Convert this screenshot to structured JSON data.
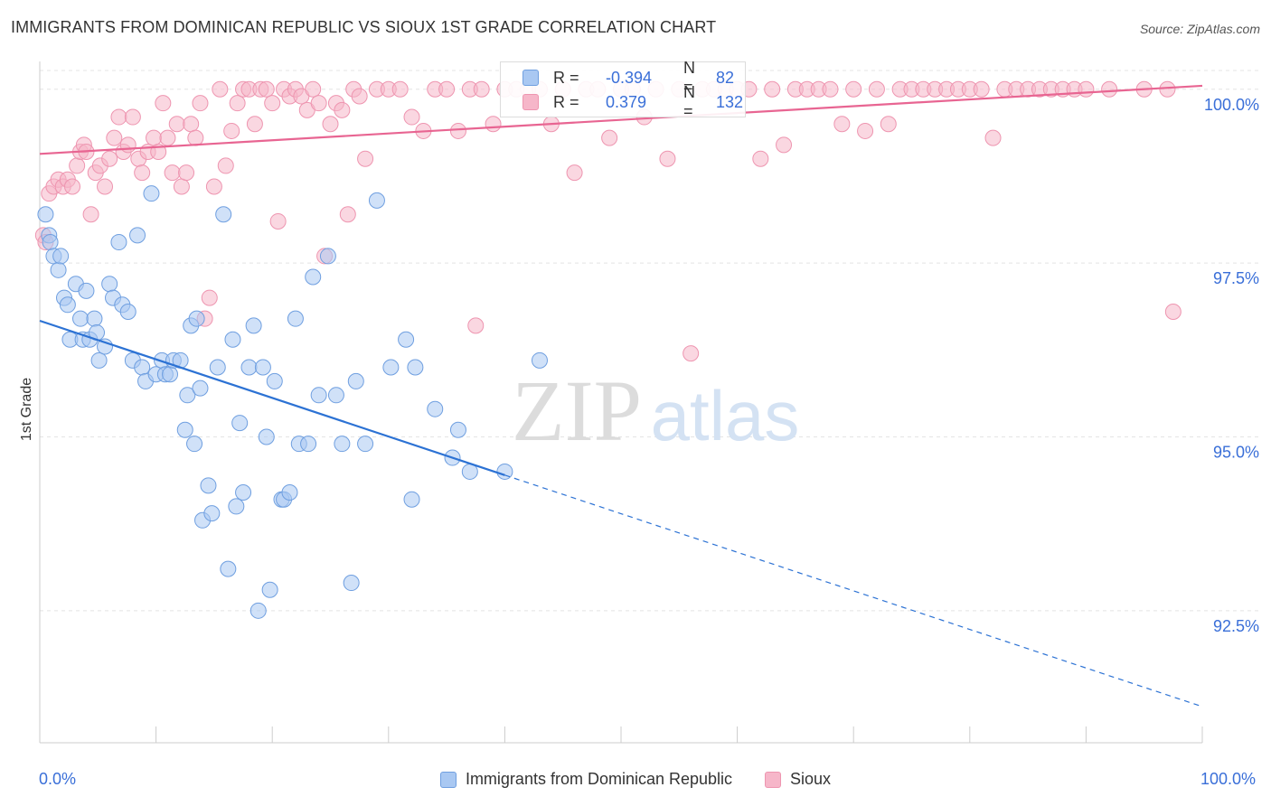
{
  "header": {
    "title": "IMMIGRANTS FROM DOMINICAN REPUBLIC VS SIOUX 1ST GRADE CORRELATION CHART",
    "source": "Source: ZipAtlas.com"
  },
  "watermark": {
    "zip": "ZIP",
    "atlas": "atlas"
  },
  "colors": {
    "blue_fill": "#a9c8f2",
    "blue_stroke": "#6f9fe0",
    "blue_line": "#2c72d4",
    "pink_fill": "#f6b6c9",
    "pink_stroke": "#ee95b0",
    "pink_line": "#e86592",
    "axis_value": "#3a6fd8",
    "grid": "#e4e4e4"
  },
  "stats": [
    {
      "r_label": "R =",
      "r_value": "-0.394",
      "n_label": "N =",
      "n_value": "82",
      "color": "blue"
    },
    {
      "r_label": "R =",
      "r_value": "0.379",
      "n_label": "N =",
      "n_value": "132",
      "color": "pink"
    }
  ],
  "chart_data": {
    "type": "scatter",
    "title": "IMMIGRANTS FROM DOMINICAN REPUBLIC VS SIOUX 1ST GRADE CORRELATION CHART",
    "xlabel": "",
    "ylabel": "1st Grade",
    "xlim": [
      0,
      100
    ],
    "ylim": [
      90.6,
      100.4
    ],
    "x_tick_labels": [
      "0.0%",
      "100.0%"
    ],
    "y_ticks": [
      92.5,
      95.0,
      97.5,
      100.0
    ],
    "y_tick_labels": [
      "92.5%",
      "95.0%",
      "97.5%",
      "100.0%"
    ],
    "grid": true,
    "legend_position": "bottom-center",
    "series": [
      {
        "name": "Immigrants from Dominican Republic",
        "color": "blue",
        "R": -0.394,
        "N": 82,
        "trend": {
          "x0": 0,
          "y0": 96.67,
          "x_solid_end": 40,
          "x1": 100,
          "y1": 91.12
        },
        "points": [
          [
            0.5,
            98.2
          ],
          [
            0.8,
            97.9
          ],
          [
            0.9,
            97.8
          ],
          [
            1.2,
            97.6
          ],
          [
            1.6,
            97.4
          ],
          [
            1.8,
            97.6
          ],
          [
            2.1,
            97.0
          ],
          [
            2.4,
            96.9
          ],
          [
            2.6,
            96.4
          ],
          [
            3.1,
            97.2
          ],
          [
            3.5,
            96.7
          ],
          [
            3.7,
            96.4
          ],
          [
            4.0,
            97.1
          ],
          [
            4.3,
            96.4
          ],
          [
            4.7,
            96.7
          ],
          [
            4.9,
            96.5
          ],
          [
            5.1,
            96.1
          ],
          [
            5.6,
            96.3
          ],
          [
            6.0,
            97.2
          ],
          [
            6.3,
            97.0
          ],
          [
            6.8,
            97.8
          ],
          [
            7.1,
            96.9
          ],
          [
            7.6,
            96.8
          ],
          [
            8.0,
            96.1
          ],
          [
            8.4,
            97.9
          ],
          [
            8.8,
            96.0
          ],
          [
            9.1,
            95.8
          ],
          [
            9.6,
            98.5
          ],
          [
            10.0,
            95.9
          ],
          [
            10.5,
            96.1
          ],
          [
            10.8,
            95.9
          ],
          [
            11.2,
            95.9
          ],
          [
            11.5,
            96.1
          ],
          [
            12.1,
            96.1
          ],
          [
            12.5,
            95.1
          ],
          [
            12.7,
            95.6
          ],
          [
            13.0,
            96.6
          ],
          [
            13.3,
            94.9
          ],
          [
            13.5,
            96.7
          ],
          [
            13.8,
            95.7
          ],
          [
            14.0,
            93.8
          ],
          [
            14.5,
            94.3
          ],
          [
            14.8,
            93.9
          ],
          [
            15.3,
            96.0
          ],
          [
            15.8,
            98.2
          ],
          [
            16.2,
            93.1
          ],
          [
            16.6,
            96.4
          ],
          [
            16.9,
            94.0
          ],
          [
            17.2,
            95.2
          ],
          [
            17.5,
            94.2
          ],
          [
            18.0,
            96.0
          ],
          [
            18.4,
            96.6
          ],
          [
            18.8,
            92.5
          ],
          [
            19.2,
            96.0
          ],
          [
            19.5,
            95.0
          ],
          [
            19.8,
            92.8
          ],
          [
            20.2,
            95.8
          ],
          [
            20.8,
            94.1
          ],
          [
            21.0,
            94.1
          ],
          [
            21.5,
            94.2
          ],
          [
            22.0,
            96.7
          ],
          [
            22.3,
            94.9
          ],
          [
            23.1,
            94.9
          ],
          [
            23.5,
            97.3
          ],
          [
            24.0,
            95.6
          ],
          [
            24.8,
            97.6
          ],
          [
            25.5,
            95.6
          ],
          [
            26.0,
            94.9
          ],
          [
            26.8,
            92.9
          ],
          [
            27.2,
            95.8
          ],
          [
            28.0,
            94.9
          ],
          [
            29.0,
            98.4
          ],
          [
            30.2,
            96.0
          ],
          [
            31.5,
            96.4
          ],
          [
            32.0,
            94.1
          ],
          [
            32.3,
            96.0
          ],
          [
            34.0,
            95.4
          ],
          [
            35.5,
            94.7
          ],
          [
            36.0,
            95.1
          ],
          [
            37.0,
            94.5
          ],
          [
            40.0,
            94.5
          ],
          [
            43.0,
            96.1
          ]
        ]
      },
      {
        "name": "Sioux",
        "color": "pink",
        "R": 0.379,
        "N": 132,
        "trend": {
          "x0": 0,
          "y0": 99.07,
          "x_solid_end": 100,
          "x1": 100,
          "y1": 100.05
        },
        "points": [
          [
            0.3,
            97.9
          ],
          [
            0.5,
            97.8
          ],
          [
            0.8,
            98.5
          ],
          [
            1.2,
            98.6
          ],
          [
            1.6,
            98.7
          ],
          [
            2.0,
            98.6
          ],
          [
            2.4,
            98.7
          ],
          [
            2.8,
            98.6
          ],
          [
            3.2,
            98.9
          ],
          [
            3.5,
            99.1
          ],
          [
            3.8,
            99.2
          ],
          [
            4.0,
            99.1
          ],
          [
            4.4,
            98.2
          ],
          [
            4.8,
            98.8
          ],
          [
            5.2,
            98.9
          ],
          [
            5.6,
            98.6
          ],
          [
            6.0,
            99.0
          ],
          [
            6.4,
            99.3
          ],
          [
            6.8,
            99.6
          ],
          [
            7.2,
            99.1
          ],
          [
            7.6,
            99.2
          ],
          [
            8.0,
            99.6
          ],
          [
            8.5,
            99.0
          ],
          [
            8.8,
            98.8
          ],
          [
            9.3,
            99.1
          ],
          [
            9.8,
            99.3
          ],
          [
            10.2,
            99.1
          ],
          [
            10.6,
            99.8
          ],
          [
            11.0,
            99.3
          ],
          [
            11.4,
            98.8
          ],
          [
            11.8,
            99.5
          ],
          [
            12.2,
            98.6
          ],
          [
            12.6,
            98.8
          ],
          [
            13.0,
            99.5
          ],
          [
            13.4,
            99.3
          ],
          [
            13.8,
            99.8
          ],
          [
            14.2,
            96.7
          ],
          [
            14.6,
            97.0
          ],
          [
            15.0,
            98.6
          ],
          [
            15.5,
            100.0
          ],
          [
            16.0,
            98.9
          ],
          [
            16.5,
            99.4
          ],
          [
            17.0,
            99.8
          ],
          [
            17.5,
            100.0
          ],
          [
            18.0,
            100.0
          ],
          [
            18.5,
            99.5
          ],
          [
            19.0,
            100.0
          ],
          [
            19.5,
            100.0
          ],
          [
            20.0,
            99.8
          ],
          [
            20.5,
            98.1
          ],
          [
            21.0,
            100.0
          ],
          [
            21.5,
            99.9
          ],
          [
            22.0,
            100.0
          ],
          [
            22.5,
            99.9
          ],
          [
            23.0,
            99.7
          ],
          [
            23.5,
            100.0
          ],
          [
            24.0,
            99.8
          ],
          [
            24.5,
            97.6
          ],
          [
            25.0,
            99.5
          ],
          [
            25.5,
            99.8
          ],
          [
            26.0,
            99.7
          ],
          [
            26.5,
            98.2
          ],
          [
            27.0,
            100.0
          ],
          [
            27.5,
            99.9
          ],
          [
            28.0,
            99.0
          ],
          [
            29.0,
            100.0
          ],
          [
            30.0,
            100.0
          ],
          [
            31.0,
            100.0
          ],
          [
            32.0,
            99.6
          ],
          [
            33.0,
            99.4
          ],
          [
            34.0,
            100.0
          ],
          [
            35.0,
            100.0
          ],
          [
            36.0,
            99.4
          ],
          [
            37.0,
            100.0
          ],
          [
            37.5,
            96.6
          ],
          [
            38.0,
            100.0
          ],
          [
            39.0,
            99.5
          ],
          [
            40.0,
            100.0
          ],
          [
            41.0,
            100.0
          ],
          [
            42.0,
            100.0
          ],
          [
            43.0,
            100.0
          ],
          [
            44.0,
            99.5
          ],
          [
            45.0,
            100.0
          ],
          [
            46.0,
            98.8
          ],
          [
            47.0,
            100.0
          ],
          [
            48.0,
            100.0
          ],
          [
            49.0,
            99.3
          ],
          [
            50.0,
            100.0
          ],
          [
            51.0,
            100.0
          ],
          [
            52.0,
            99.6
          ],
          [
            53.0,
            100.0
          ],
          [
            54.0,
            99.0
          ],
          [
            55.0,
            100.0
          ],
          [
            56.0,
            96.2
          ],
          [
            57.0,
            100.0
          ],
          [
            58.0,
            100.0
          ],
          [
            59.0,
            100.0
          ],
          [
            60.0,
            100.0
          ],
          [
            61.0,
            100.0
          ],
          [
            62.0,
            99.0
          ],
          [
            63.0,
            100.0
          ],
          [
            64.0,
            99.2
          ],
          [
            65.0,
            100.0
          ],
          [
            66.0,
            100.0
          ],
          [
            67.0,
            100.0
          ],
          [
            68.0,
            100.0
          ],
          [
            69.0,
            99.5
          ],
          [
            70.0,
            100.0
          ],
          [
            71.0,
            99.4
          ],
          [
            72.0,
            100.0
          ],
          [
            73.0,
            99.5
          ],
          [
            74.0,
            100.0
          ],
          [
            75.0,
            100.0
          ],
          [
            76.0,
            100.0
          ],
          [
            77.0,
            100.0
          ],
          [
            78.0,
            100.0
          ],
          [
            79.0,
            100.0
          ],
          [
            80.0,
            100.0
          ],
          [
            81.0,
            100.0
          ],
          [
            82.0,
            99.3
          ],
          [
            83.0,
            100.0
          ],
          [
            84.0,
            100.0
          ],
          [
            85.0,
            100.0
          ],
          [
            86.0,
            100.0
          ],
          [
            87.0,
            100.0
          ],
          [
            88.0,
            100.0
          ],
          [
            89.0,
            100.0
          ],
          [
            90.0,
            100.0
          ],
          [
            92.0,
            100.0
          ],
          [
            95.0,
            100.0
          ],
          [
            97.0,
            100.0
          ],
          [
            97.5,
            96.8
          ]
        ]
      }
    ]
  }
}
